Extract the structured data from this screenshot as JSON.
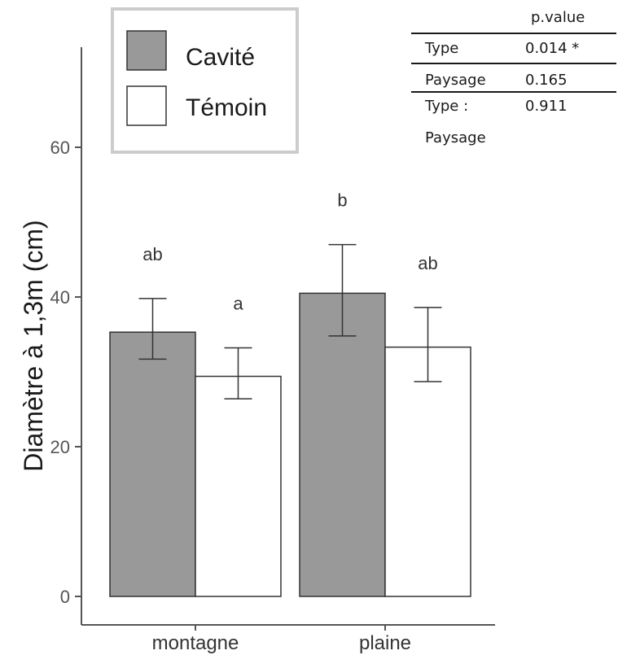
{
  "chart_data": {
    "type": "bar",
    "categories": [
      "montagne",
      "plaine"
    ],
    "ylabel": "Diamètre à 1,3m (cm)",
    "xlabel": "",
    "ylim": [
      0,
      70
    ],
    "yticks": [
      0,
      20,
      40,
      60
    ],
    "grid": false,
    "legend_position": "top-left",
    "series": [
      {
        "name": "Cavité",
        "color": "#999999",
        "values": [
          35.3,
          40.5
        ],
        "error_low": [
          31.7,
          34.8
        ],
        "error_high": [
          39.8,
          47.0
        ],
        "letters": [
          "ab",
          "b"
        ]
      },
      {
        "name": "Témoin",
        "color": "#ffffff",
        "values": [
          29.4,
          33.3
        ],
        "error_low": [
          26.4,
          28.7
        ],
        "error_high": [
          33.2,
          38.6
        ],
        "letters": [
          "a",
          "ab"
        ]
      }
    ],
    "stats_table": {
      "header": "p.value",
      "rows": [
        {
          "term": [
            "Type"
          ],
          "value": "0.014 *"
        },
        {
          "term": [
            "Paysage"
          ],
          "value": "0.165"
        },
        {
          "term": [
            "Type :",
            "Paysage"
          ],
          "value": "0.911"
        }
      ]
    }
  }
}
